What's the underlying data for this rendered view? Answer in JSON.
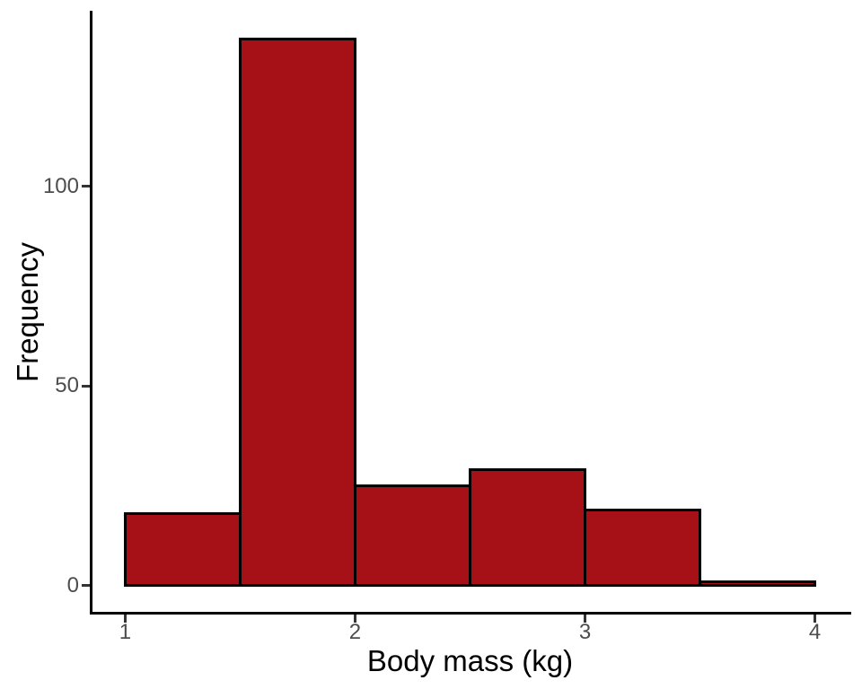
{
  "chart_data": {
    "type": "histogram",
    "title": "",
    "xlabel": "Body mass (kg)",
    "ylabel": "Frequency",
    "bin_edges": [
      1.0,
      1.5,
      2.0,
      2.5,
      3.0,
      3.5,
      4.0
    ],
    "values": [
      18,
      137,
      25,
      29,
      19,
      1
    ],
    "x_ticks": [
      "1",
      "2",
      "3",
      "4"
    ],
    "x_tick_values": [
      1,
      2,
      3,
      4
    ],
    "y_ticks": [
      "0",
      "50",
      "100"
    ],
    "y_tick_values": [
      0,
      50,
      100
    ],
    "xlim": [
      0.85,
      4.15
    ],
    "ylim": [
      -6.85,
      143.85
    ],
    "grid": false,
    "legend": false,
    "colors": {
      "bar_fill": "#A61118",
      "bar_border": "#000000",
      "axis_line": "#000000",
      "tick_mark": "#333333",
      "tick_label": "#4D4D4D",
      "axis_title": "#000000",
      "background": "#FFFFFF"
    }
  }
}
